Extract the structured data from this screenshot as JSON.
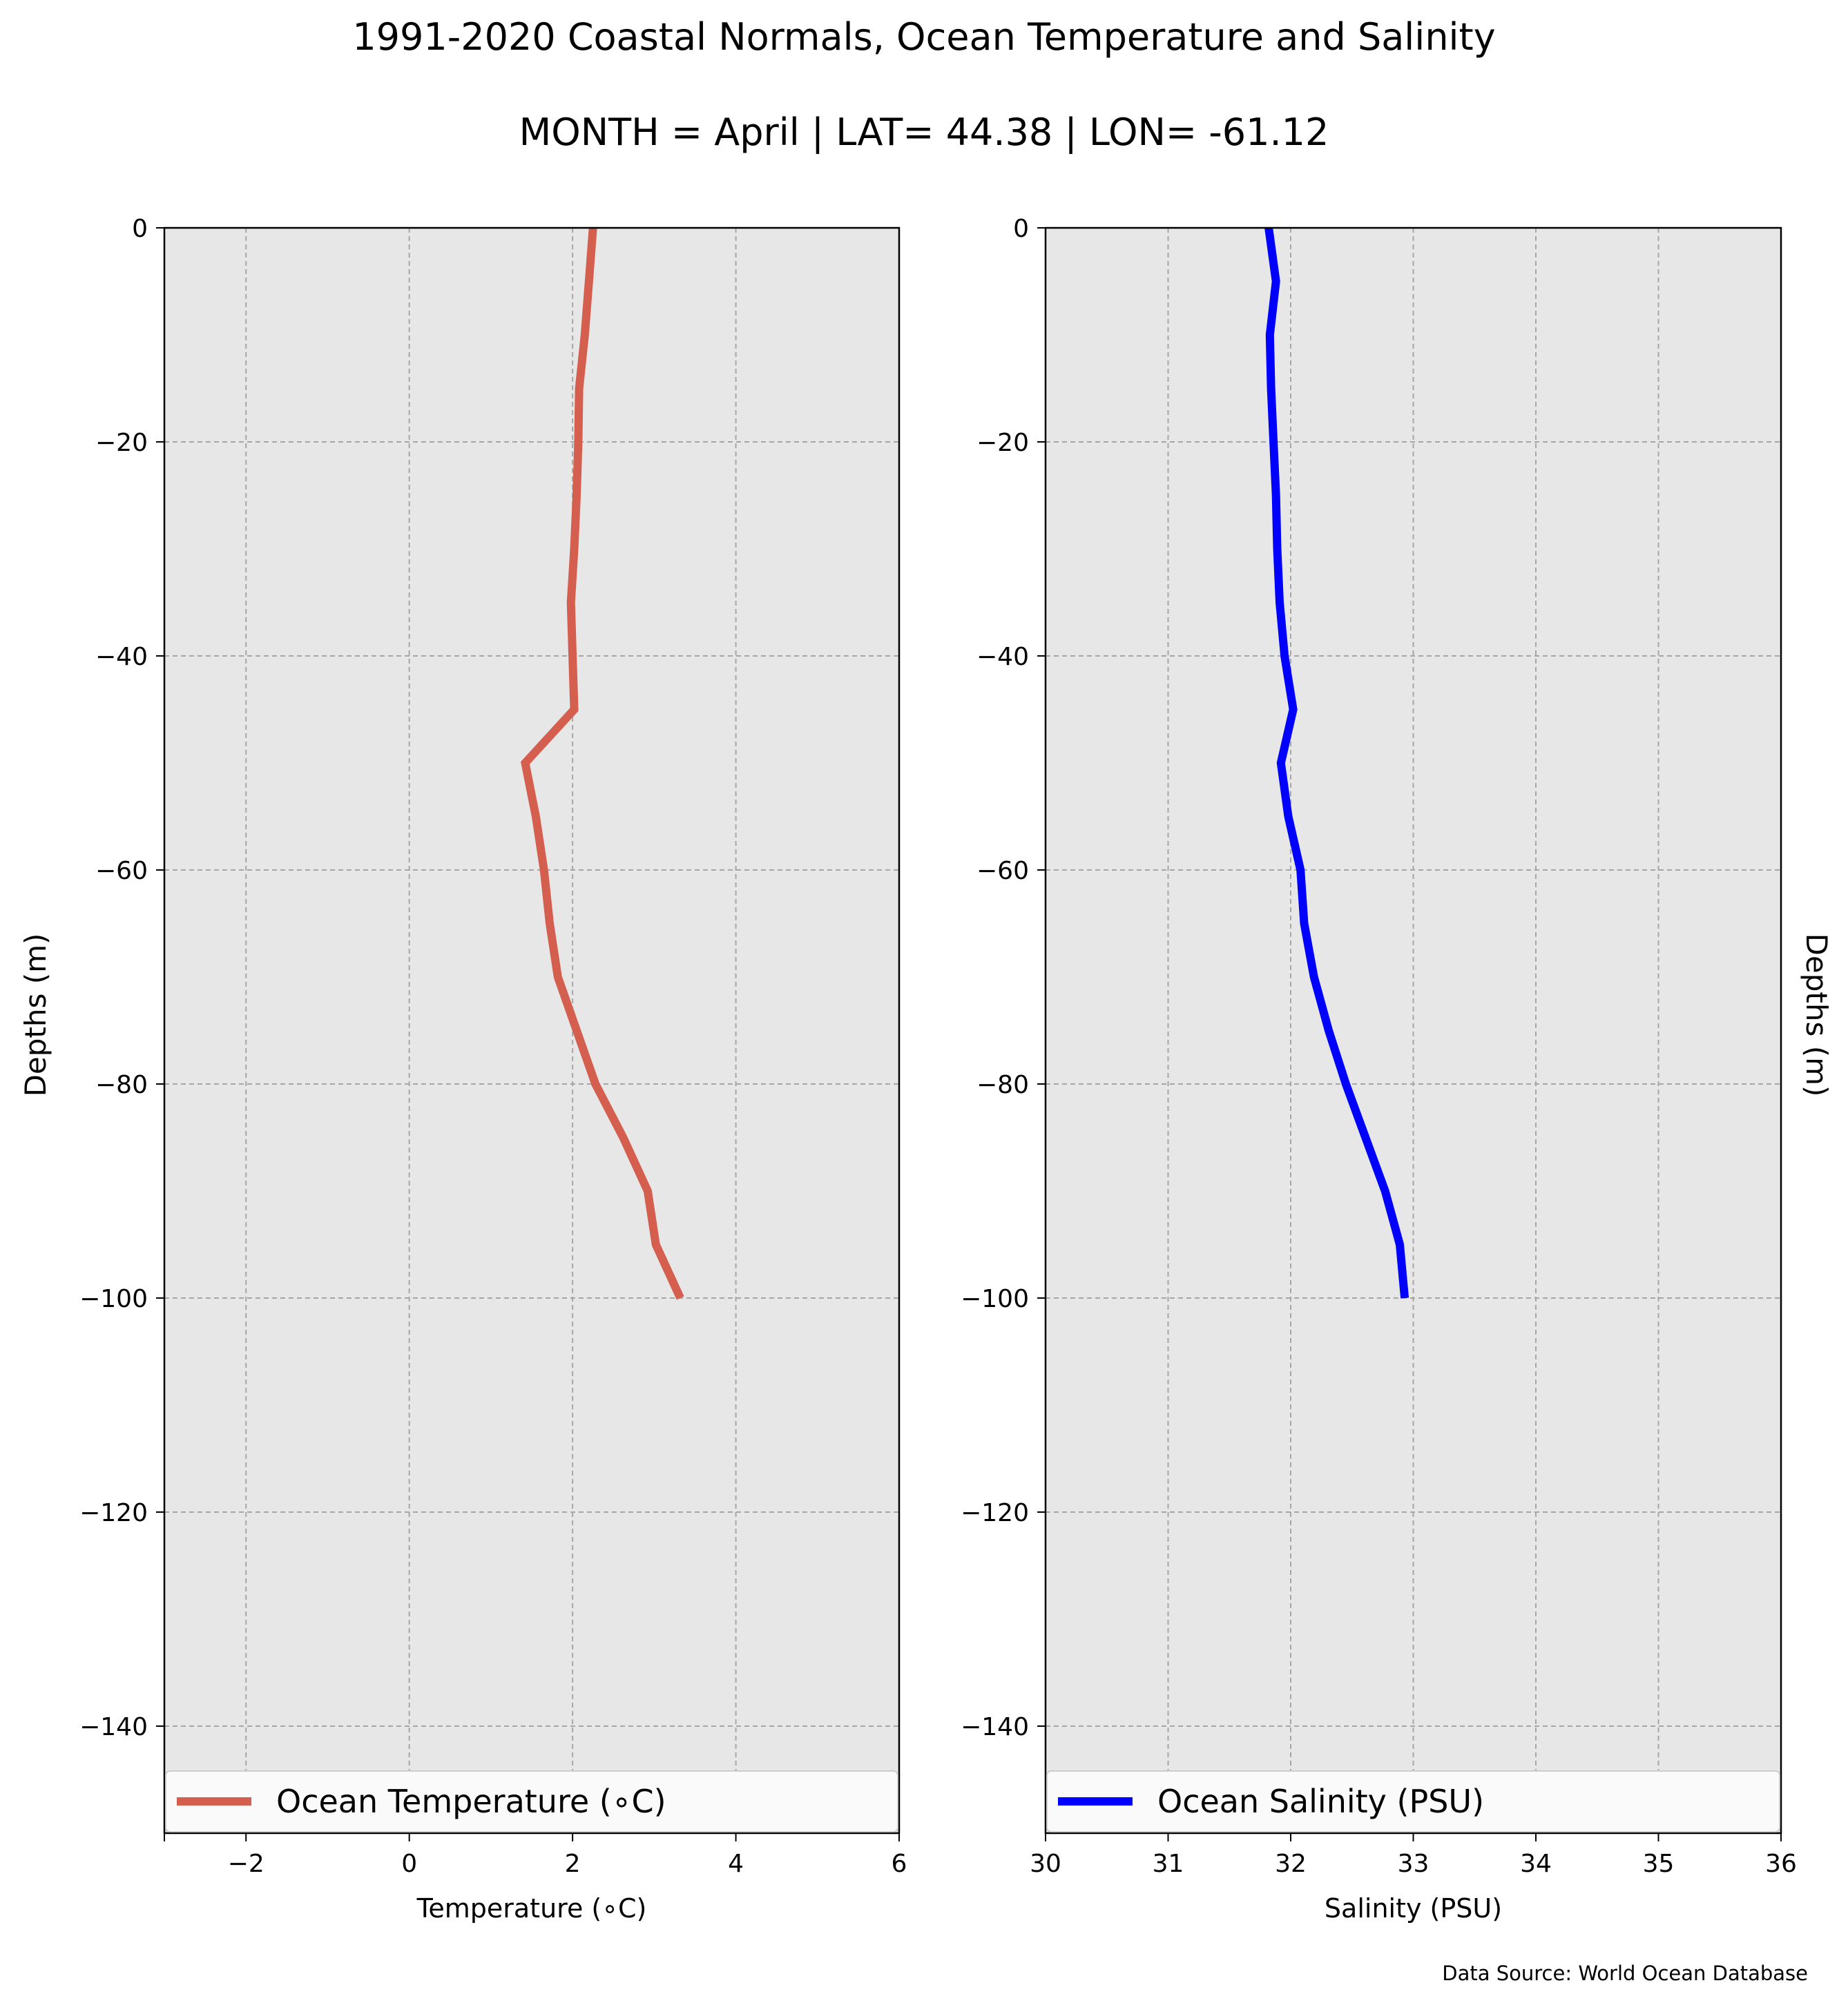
{
  "title": "1991-2020 Coastal Normals, Ocean Temperature and Salinity",
  "subtitle": "MONTH = April | LAT= 44.38 | LON= -61.12",
  "source": "Data Source: World Ocean Database",
  "chart_data": [
    {
      "type": "line",
      "xlabel": "Temperature (∘C)",
      "ylabel": "Depths (m)",
      "xlim": [
        -3,
        6
      ],
      "ylim": [
        -150,
        0
      ],
      "xticks": [
        -2,
        0,
        2,
        4,
        6
      ],
      "xtick_labels": [
        "−2",
        "0",
        "2",
        "4",
        "6"
      ],
      "yticks": [
        0,
        -20,
        -40,
        -60,
        -80,
        -100,
        -120,
        -140
      ],
      "ytick_labels": [
        "0",
        "−20",
        "−40",
        "−60",
        "−80",
        "−100",
        "−120",
        "−140"
      ],
      "grid": true,
      "legend_position": "bottom",
      "series": [
        {
          "name": "Ocean Temperature (∘C)",
          "color": "#d45f4f",
          "x": [
            2.25,
            2.2,
            2.15,
            2.08,
            2.07,
            2.05,
            2.02,
            1.98,
            2.02,
            1.42,
            1.55,
            1.65,
            1.72,
            1.82,
            2.05,
            2.28,
            2.62,
            2.92,
            3.02,
            3.32
          ],
          "y": [
            0,
            -5,
            -10,
            -15,
            -20,
            -25,
            -30,
            -35,
            -45,
            -50,
            -55,
            -60,
            -65,
            -70,
            -75,
            -80,
            -85,
            -90,
            -95,
            -100
          ]
        }
      ]
    },
    {
      "type": "line",
      "xlabel": "Salinity (PSU)",
      "ylabel": "Depths (m)",
      "xlim": [
        30,
        36
      ],
      "ylim": [
        -150,
        0
      ],
      "xticks": [
        30,
        31,
        32,
        33,
        34,
        35,
        36
      ],
      "xtick_labels": [
        "30",
        "31",
        "32",
        "33",
        "34",
        "35",
        "36"
      ],
      "yticks": [
        0,
        -20,
        -40,
        -60,
        -80,
        -100,
        -120,
        -140
      ],
      "ytick_labels": [
        "0",
        "−20",
        "−40",
        "−60",
        "−80",
        "−100",
        "−120",
        "−140"
      ],
      "grid": true,
      "legend_position": "bottom",
      "series": [
        {
          "name": "Ocean Salinity (PSU)",
          "color": "#0000ff",
          "x": [
            31.82,
            31.88,
            31.83,
            31.84,
            31.86,
            31.88,
            31.89,
            31.91,
            31.95,
            32.02,
            31.92,
            31.98,
            32.08,
            32.11,
            32.19,
            32.31,
            32.45,
            32.61,
            32.77,
            32.89,
            32.93
          ],
          "y": [
            0,
            -5,
            -10,
            -15,
            -20,
            -25,
            -30,
            -35,
            -40,
            -45,
            -50,
            -55,
            -60,
            -65,
            -70,
            -75,
            -80,
            -85,
            -90,
            -95,
            -100
          ]
        }
      ]
    }
  ]
}
